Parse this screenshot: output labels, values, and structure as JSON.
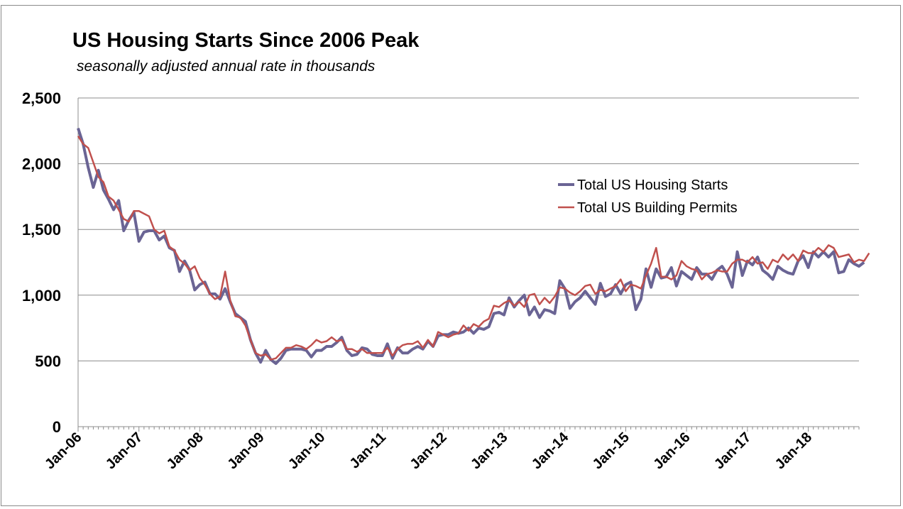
{
  "chart_data": {
    "type": "line",
    "title": "US Housing Starts Since 2006 Peak",
    "subtitle": "seasonally adjusted annual rate in thousands",
    "ylim": [
      0,
      2500
    ],
    "yticks": [
      0,
      500,
      1000,
      1500,
      2000,
      2500
    ],
    "ytick_labels": [
      "0",
      "500",
      "1,000",
      "1,500",
      "2,000",
      "2,500"
    ],
    "x_start": "Jan-06",
    "xtick_labels": [
      "Jan-06",
      "Jan-07",
      "Jan-08",
      "Jan-09",
      "Jan-10",
      "Jan-11",
      "Jan-12",
      "Jan-13",
      "Jan-14",
      "Jan-15",
      "Jan-16",
      "Jan-17",
      "Jan-18"
    ],
    "grid": "horizontal",
    "legend_position": "center-right",
    "series": [
      {
        "name": "Total US Housing Starts",
        "color": "#6a6494",
        "values": [
          2270,
          2150,
          1970,
          1820,
          1950,
          1800,
          1730,
          1650,
          1720,
          1490,
          1570,
          1630,
          1410,
          1480,
          1490,
          1490,
          1420,
          1450,
          1360,
          1340,
          1180,
          1260,
          1190,
          1040,
          1080,
          1100,
          1010,
          1010,
          970,
          1050,
          950,
          860,
          830,
          800,
          660,
          560,
          490,
          580,
          510,
          480,
          520,
          580,
          590,
          590,
          590,
          580,
          530,
          580,
          580,
          610,
          610,
          640,
          680,
          580,
          540,
          550,
          600,
          590,
          550,
          540,
          540,
          630,
          520,
          600,
          560,
          560,
          590,
          610,
          590,
          650,
          610,
          690,
          700,
          700,
          720,
          710,
          720,
          750,
          710,
          750,
          740,
          760,
          860,
          870,
          850,
          980,
          910,
          960,
          1000,
          850,
          910,
          830,
          890,
          880,
          860,
          1110,
          1050,
          900,
          950,
          980,
          1030,
          980,
          930,
          1090,
          990,
          1010,
          1080,
          1010,
          1080,
          1100,
          890,
          970,
          1200,
          1060,
          1200,
          1130,
          1140,
          1210,
          1070,
          1180,
          1150,
          1120,
          1210,
          1160,
          1160,
          1120,
          1190,
          1220,
          1160,
          1060,
          1330,
          1150,
          1260,
          1230,
          1290,
          1190,
          1160,
          1120,
          1220,
          1190,
          1170,
          1160,
          1260,
          1300,
          1210,
          1330,
          1290,
          1330,
          1290,
          1330,
          1170,
          1180,
          1270,
          1240,
          1220,
          1250
        ]
      },
      {
        "name": "Total US Building Permits",
        "color": "#c0504d",
        "values": [
          2210,
          2150,
          2120,
          2010,
          1900,
          1860,
          1750,
          1720,
          1650,
          1580,
          1560,
          1640,
          1640,
          1620,
          1600,
          1500,
          1470,
          1490,
          1370,
          1340,
          1270,
          1240,
          1190,
          1220,
          1130,
          1080,
          1010,
          970,
          990,
          1180,
          960,
          840,
          830,
          770,
          660,
          560,
          540,
          550,
          510,
          520,
          560,
          600,
          600,
          620,
          610,
          590,
          620,
          660,
          640,
          650,
          680,
          650,
          660,
          590,
          590,
          570,
          590,
          560,
          560,
          560,
          560,
          600,
          540,
          590,
          620,
          630,
          630,
          650,
          600,
          660,
          610,
          720,
          700,
          680,
          700,
          710,
          770,
          730,
          780,
          760,
          800,
          820,
          920,
          910,
          940,
          960,
          920,
          950,
          910,
          1000,
          1010,
          930,
          980,
          940,
          990,
          1060,
          1050,
          1020,
          1000,
          1030,
          1070,
          1080,
          1010,
          1040,
          1030,
          1050,
          1070,
          1120,
          1030,
          1080,
          1070,
          1050,
          1150,
          1240,
          1360,
          1140,
          1140,
          1120,
          1150,
          1260,
          1220,
          1200,
          1190,
          1120,
          1160,
          1170,
          1190,
          1180,
          1180,
          1240,
          1270,
          1270,
          1250,
          1290,
          1240,
          1250,
          1200,
          1270,
          1250,
          1310,
          1270,
          1310,
          1260,
          1340,
          1320,
          1320,
          1360,
          1330,
          1380,
          1360,
          1290,
          1300,
          1310,
          1250,
          1270,
          1260,
          1320
        ]
      }
    ]
  }
}
